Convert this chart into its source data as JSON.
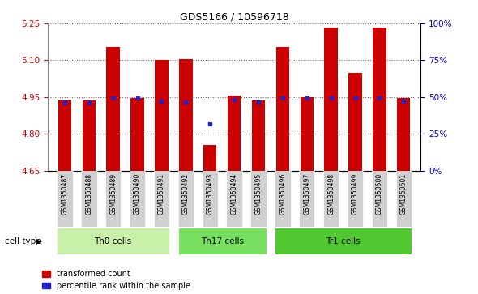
{
  "title": "GDS5166 / 10596718",
  "samples": [
    "GSM1350487",
    "GSM1350488",
    "GSM1350489",
    "GSM1350490",
    "GSM1350491",
    "GSM1350492",
    "GSM1350493",
    "GSM1350494",
    "GSM1350495",
    "GSM1350496",
    "GSM1350497",
    "GSM1350498",
    "GSM1350499",
    "GSM1350500",
    "GSM1350501"
  ],
  "bar_values": [
    4.935,
    4.935,
    5.155,
    4.945,
    5.1,
    5.105,
    4.755,
    4.955,
    4.935,
    5.155,
    4.95,
    5.235,
    5.05,
    5.235,
    4.945
  ],
  "percentile_values": [
    4.925,
    4.925,
    4.945,
    4.945,
    4.933,
    4.928,
    4.84,
    4.94,
    4.928,
    4.945,
    4.945,
    4.945,
    4.945,
    4.945,
    4.933
  ],
  "cell_groups": [
    {
      "label": "Th0 cells",
      "start": 0,
      "end": 5
    },
    {
      "label": "Th17 cells",
      "start": 5,
      "end": 9
    },
    {
      "label": "Tr1 cells",
      "start": 9,
      "end": 15
    }
  ],
  "group_colors": [
    "#c8f0a8",
    "#78e060",
    "#50c830"
  ],
  "ymin": 4.65,
  "ymax": 5.25,
  "yticks": [
    4.65,
    4.8,
    4.95,
    5.1,
    5.25
  ],
  "bar_color": "#cc0000",
  "dot_color": "#2222cc",
  "label_color_left": "#cc0000",
  "label_color_right": "#0000bb",
  "legend_items": [
    "transformed count",
    "percentile rank within the sample"
  ],
  "cell_type_label": "cell type"
}
